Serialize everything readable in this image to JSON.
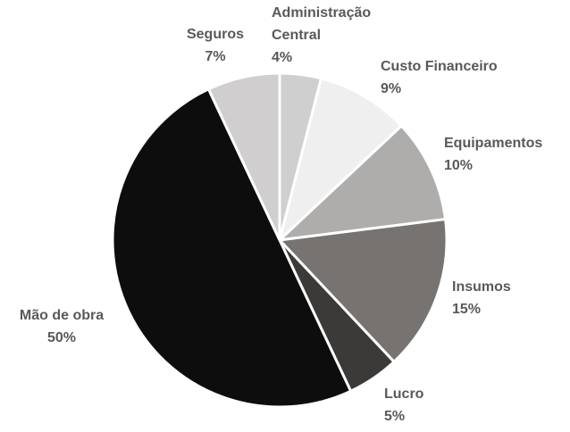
{
  "chart_data": {
    "type": "pie",
    "categories": [
      "Administração Central",
      "Custo Financeiro",
      "Equipamentos",
      "Insumos",
      "Lucro",
      "Mão de obra",
      "Seguros"
    ],
    "values": [
      4,
      9,
      10,
      15,
      5,
      50,
      7
    ],
    "value_labels": [
      "4%",
      "9%",
      "10%",
      "15%",
      "5%",
      "50%",
      "7%"
    ],
    "colors": [
      "#cfcfcf",
      "#efefef",
      "#afadac",
      "#767371",
      "#3c3a38",
      "#0d0d0d",
      "#d0cece"
    ]
  }
}
